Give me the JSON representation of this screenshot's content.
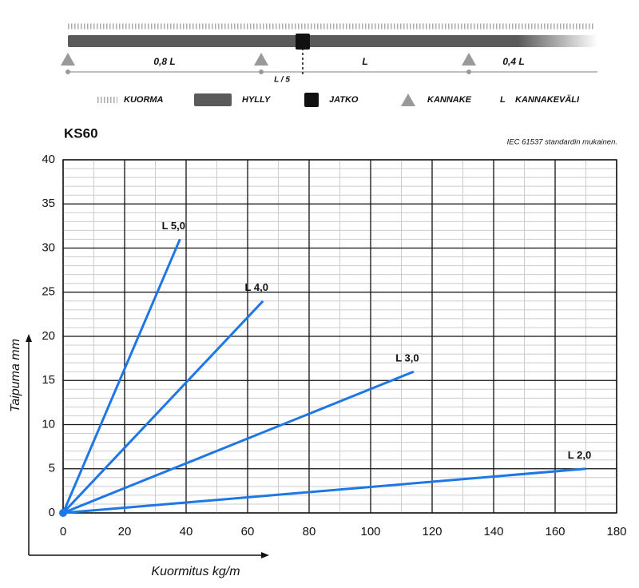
{
  "diagram": {
    "spans": [
      "0,8 L",
      "L",
      "0,4 L"
    ],
    "offset_label": "L / 5",
    "legend": [
      "KUORMA",
      "HYLLY",
      "JATKO",
      "KANNAKE"
    ],
    "span_symbol": "L",
    "span_legend": "KANNAKEVÄLI"
  },
  "chart_data": {
    "type": "line",
    "title": "KS60",
    "subtitle": "IEC 61537 standardin mukainen.",
    "x_label": "Kuormitus kg/m",
    "y_label": "Taipuma mm",
    "xlim": [
      0,
      180
    ],
    "ylim": [
      0,
      40
    ],
    "xticks": [
      0,
      20,
      40,
      60,
      80,
      100,
      120,
      140,
      160,
      180
    ],
    "yticks": [
      0,
      5,
      10,
      15,
      20,
      25,
      30,
      35,
      40
    ],
    "minor_grid": {
      "x": 10,
      "y": 1
    },
    "grid": true,
    "series": [
      {
        "name": "L 5,0",
        "color": "#1f77e6",
        "x": [
          0,
          38
        ],
        "values": [
          0,
          31
        ]
      },
      {
        "name": "L 4,0",
        "color": "#1f77e6",
        "x": [
          0,
          65
        ],
        "values": [
          0,
          24
        ]
      },
      {
        "name": "L 3,0",
        "color": "#1f77e6",
        "x": [
          0,
          114
        ],
        "values": [
          0,
          16
        ]
      },
      {
        "name": "L 2,0",
        "color": "#1f77e6",
        "x": [
          0,
          170
        ],
        "values": [
          0,
          5
        ]
      }
    ]
  }
}
